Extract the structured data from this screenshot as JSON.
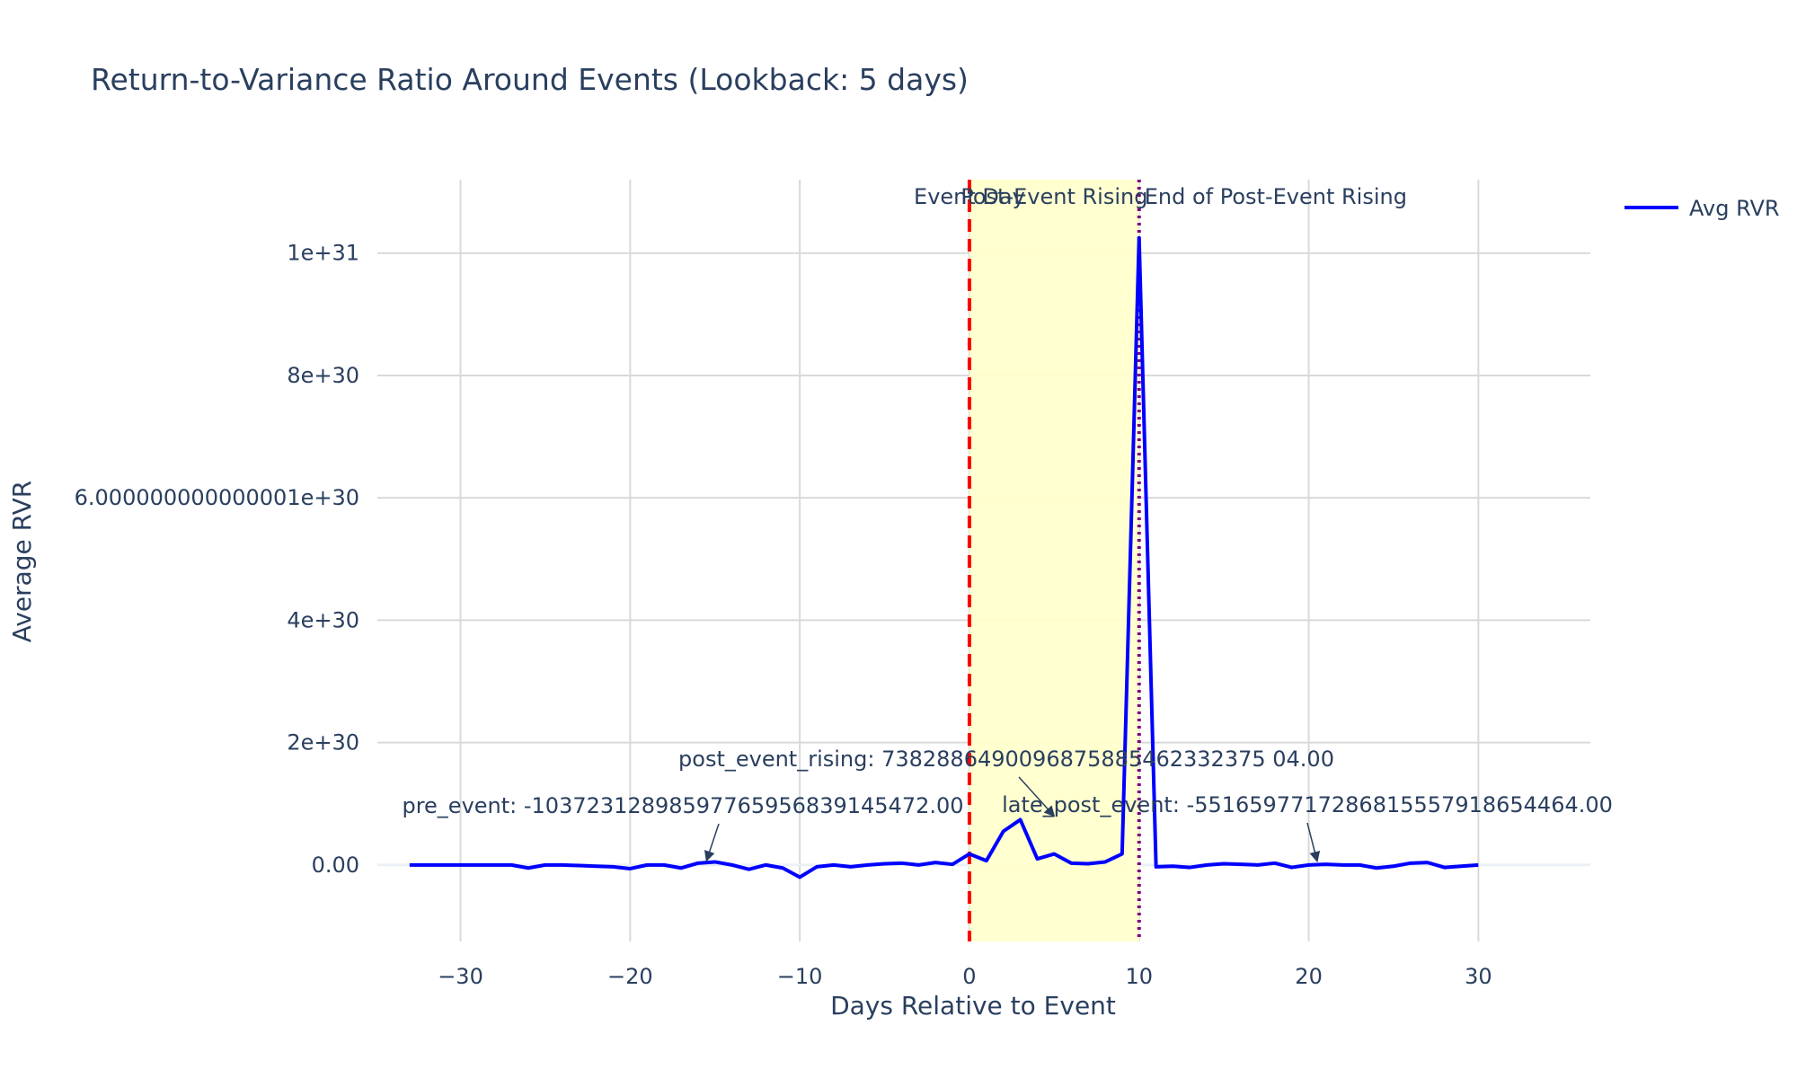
{
  "chart_data": {
    "type": "line",
    "title": "Return-to-Variance Ratio Around Events (Lookback: 5 days)",
    "xlabel": "Days Relative to Event",
    "ylabel": "Average RVR",
    "xlim": [
      -34.9,
      36.6
    ],
    "ylim": [
      -1.25e+30,
      1.12e+31
    ],
    "x_ticks": [
      -30,
      -20,
      -10,
      0,
      10,
      20,
      30
    ],
    "x_tick_labels": [
      "−30",
      "−20",
      "−10",
      "0",
      "10",
      "20",
      "30"
    ],
    "y_ticks": [
      0,
      2e+30,
      4e+30,
      6e+30,
      8e+30,
      1e+31
    ],
    "y_tick_labels": [
      "0.00",
      "2e+30",
      "4e+30",
      "6.000000000000001e+30",
      "8e+30",
      "1e+31"
    ],
    "grid": true,
    "legend_position": "top-right",
    "series": [
      {
        "name": "Avg RVR",
        "color": "#0000ff",
        "x": [
          -33,
          -32,
          -31,
          -30,
          -29,
          -28,
          -27,
          -26,
          -25,
          -24,
          -23,
          -22,
          -21,
          -20,
          -19,
          -18,
          -17,
          -16,
          -15,
          -14,
          -13,
          -12,
          -11,
          -10,
          -9,
          -8,
          -7,
          -6,
          -5,
          -4,
          -3,
          -2,
          -1,
          0,
          1,
          2,
          3,
          4,
          5,
          6,
          7,
          8,
          9,
          10,
          11,
          12,
          13,
          14,
          15,
          16,
          17,
          18,
          19,
          20,
          21,
          22,
          23,
          24,
          25,
          26,
          27,
          28,
          29,
          30
        ],
        "values": [
          0,
          0,
          0,
          0,
          0,
          0,
          0,
          -5e+28,
          0,
          0,
          -1e+28,
          -2e+28,
          -3e+28,
          -6e+28,
          0,
          0,
          -5e+28,
          3e+28,
          5e+28,
          0,
          -7e+28,
          0,
          -5e+28,
          -2e+29,
          -3e+28,
          0,
          -3e+28,
          0,
          2e+28,
          3e+28,
          0,
          4e+28,
          1e+28,
          1.8e+29,
          7e+28,
          5.5e+29,
          7.4e+29,
          1e+29,
          1.8e+29,
          3e+28,
          2e+28,
          5e+28,
          1.8e+29,
          1.025e+31,
          -3e+28,
          -2e+28,
          -4e+28,
          0,
          2e+28,
          1e+28,
          0,
          3e+28,
          -4e+28,
          0,
          1e+28,
          0,
          0,
          -5e+28,
          -2e+28,
          3e+28,
          4e+28,
          -4e+28,
          -2e+28,
          0
        ]
      }
    ],
    "shapes": [
      {
        "type": "rect",
        "x0": 0,
        "x1": 10,
        "color": "#ffffcc"
      },
      {
        "type": "vline",
        "x": 0,
        "color": "#ff0000",
        "dash": "dash"
      },
      {
        "type": "vline",
        "x": 10,
        "color": "#800080",
        "dash": "dot"
      }
    ],
    "vline_labels": [
      "Event Day",
      "Post-Event Rising",
      "End of Post-Event Rising"
    ],
    "annotations": [
      {
        "text": "pre_event: -10372312898597765956839145472.00",
        "x": -15.5,
        "y": 1e+28
      },
      {
        "text": "post_event_rising: 7382886490096875885462332375 04.00",
        "x": 5,
        "y": 7.4e+29
      },
      {
        "text": "late_post_event: -5516597717286815557918654464.00",
        "x": 20.5,
        "y": 0
      }
    ]
  }
}
